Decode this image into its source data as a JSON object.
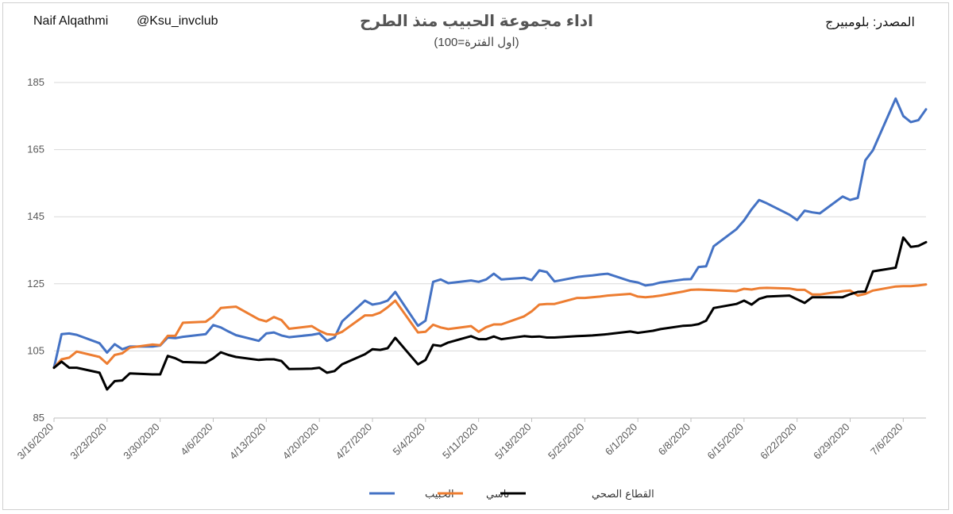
{
  "header": {
    "author": "Naif Alqathmi",
    "handle": "@Ksu_invclub",
    "source": "المصدر: بلومبيرج",
    "title": "اداء مجموعة الحبيب منذ الطرح",
    "subtitle": "(اول الفترة=100)"
  },
  "chart_data": {
    "type": "line",
    "title": "اداء مجموعة الحبيب منذ الطرح",
    "subtitle": "(اول الفترة=100)",
    "ylim": [
      85,
      185
    ],
    "yticks": [
      85,
      105,
      125,
      145,
      165,
      185
    ],
    "xtick_labels": [
      "3/16/2020",
      "3/23/2020",
      "3/30/2020",
      "4/6/2020",
      "4/13/2020",
      "4/20/2020",
      "4/27/2020",
      "5/4/2020",
      "5/11/2020",
      "5/18/2020",
      "5/25/2020",
      "6/1/2020",
      "6/8/2020",
      "6/15/2020",
      "6/22/2020",
      "6/29/2020",
      "7/6/2020"
    ],
    "grid": "horizontal",
    "legend_position": "bottom",
    "x": [
      0,
      1,
      2,
      3,
      6,
      7,
      8,
      9,
      10,
      13,
      14,
      15,
      16,
      17,
      20,
      21,
      22,
      23,
      24,
      27,
      28,
      29,
      30,
      31,
      34,
      35,
      36,
      37,
      38,
      41,
      42,
      43,
      44,
      45,
      48,
      49,
      50,
      51,
      52,
      55,
      56,
      57,
      58,
      59,
      62,
      63,
      64,
      65,
      66,
      69,
      70,
      71,
      72,
      73,
      76,
      77,
      78,
      79,
      80,
      83,
      84,
      85,
      86,
      87,
      90,
      91,
      92,
      93,
      94,
      97,
      98,
      99,
      100,
      101,
      104,
      105,
      106,
      107,
      108,
      111,
      112,
      113,
      114,
      115
    ],
    "series": [
      {
        "name": "الحبيب",
        "color": "#4472C4",
        "values": [
          100,
          110,
          110.2,
          109.8,
          107.3,
          104.5,
          107.0,
          105.5,
          106.3,
          106.3,
          106.6,
          109.0,
          108.8,
          109.2,
          110,
          112.7,
          112.0,
          110.8,
          109.7,
          108.0,
          110.2,
          110.5,
          109.6,
          109.1,
          109.8,
          110.2,
          108.0,
          109.0,
          113.8,
          120,
          118.8,
          119.2,
          120.0,
          122.6,
          112.5,
          114.0,
          125.6,
          126.3,
          125.2,
          126.0,
          125.6,
          126.3,
          128.0,
          126.3,
          126.8,
          126.1,
          129.0,
          128.5,
          125.7,
          127.0,
          127.3,
          127.5,
          127.8,
          128.0,
          125.8,
          125.4,
          124.5,
          124.8,
          125.4,
          126.3,
          126.4,
          130.0,
          130.2,
          136.2,
          141.3,
          143.9,
          147.2,
          150.0,
          149.0,
          145.6,
          144.0,
          146.8,
          146.3,
          146.0,
          151.0,
          150.0,
          150.6,
          161.8,
          164.8,
          180.2,
          175.0,
          173.2,
          173.8,
          177.0
        ]
      },
      {
        "name": "تاسي",
        "color": "#ED7D31",
        "values": [
          100,
          102.5,
          103.0,
          104.8,
          103.2,
          101.2,
          103.8,
          104.3,
          106.0,
          106.9,
          106.7,
          109.5,
          109.5,
          113.4,
          113.7,
          115.3,
          117.8,
          118.0,
          118.2,
          114.4,
          113.8,
          115.1,
          114.2,
          111.6,
          112.4,
          111.0,
          110.0,
          109.8,
          110.7,
          115.6,
          115.6,
          116.4,
          118.0,
          120.0,
          110.5,
          110.7,
          112.8,
          112.0,
          111.5,
          112.4,
          110.7,
          112.1,
          112.9,
          112.9,
          115.3,
          116.8,
          118.8,
          119.0,
          119.0,
          120.8,
          120.8,
          121.0,
          121.2,
          121.5,
          122.0,
          121.2,
          121.0,
          121.2,
          121.5,
          122.7,
          123.2,
          123.3,
          123.2,
          123.1,
          122.8,
          123.5,
          123.3,
          123.7,
          123.8,
          123.6,
          123.2,
          123.2,
          121.8,
          121.8,
          122.8,
          123.0,
          121.5,
          122.0,
          123.0,
          124.2,
          124.3,
          124.3,
          124.5,
          124.8
        ]
      },
      {
        "name": "القطاع الصحي",
        "color": "#000000",
        "values": [
          100,
          101.8,
          100,
          100.0,
          98.5,
          93.5,
          96.0,
          96.2,
          98.3,
          98.0,
          98.0,
          103.5,
          102.8,
          101.7,
          101.5,
          102.8,
          104.6,
          103.8,
          103.2,
          102.3,
          102.5,
          102.5,
          102.0,
          99.6,
          99.7,
          100.0,
          98.5,
          99.0,
          101.0,
          104.0,
          105.5,
          105.3,
          105.8,
          108.9,
          101.0,
          102.3,
          106.8,
          106.5,
          107.5,
          109.4,
          108.5,
          108.5,
          109.3,
          108.5,
          109.4,
          109.2,
          109.3,
          109.0,
          109.0,
          109.4,
          109.5,
          109.6,
          109.8,
          110.0,
          110.8,
          110.4,
          110.7,
          111.0,
          111.5,
          112.5,
          112.6,
          113.0,
          114.0,
          117.8,
          119.0,
          120.0,
          118.8,
          120.5,
          121.2,
          121.5,
          120.4,
          119.3,
          121.0,
          121.0,
          121.0,
          121.9,
          122.6,
          122.7,
          128.7,
          129.8,
          138.8,
          136.0,
          136.3,
          137.4
        ]
      }
    ]
  }
}
